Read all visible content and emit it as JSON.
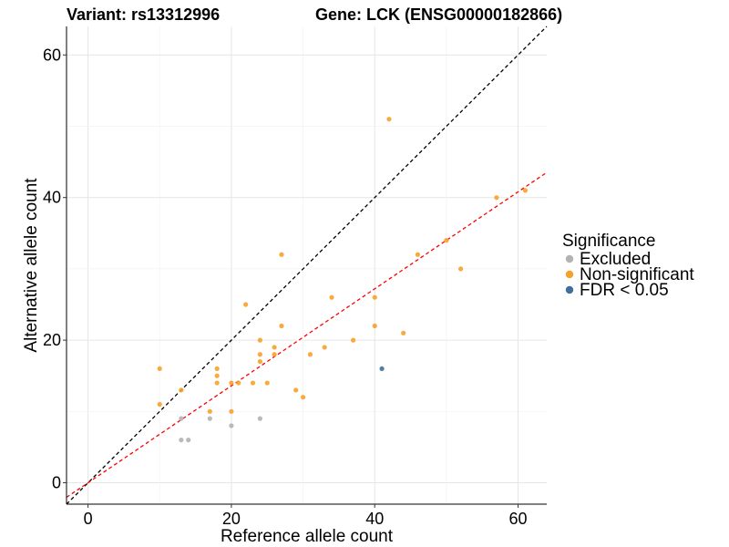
{
  "chart_data": {
    "type": "scatter",
    "title_left": "Variant: rs13312996",
    "title_right": "Gene: LCK (ENSG00000182866)",
    "xlabel": "Reference allele count",
    "ylabel": "Alternative allele count",
    "xlim": [
      -3,
      64
    ],
    "ylim": [
      -3,
      64
    ],
    "xticks": [
      0,
      20,
      40,
      60
    ],
    "yticks": [
      0,
      20,
      40,
      60
    ],
    "grid": true,
    "legend": {
      "title": "Significance",
      "placement": "right",
      "entries": [
        {
          "label": "Excluded",
          "color": "#b3b3b3"
        },
        {
          "label": "Non-significant",
          "color": "#f7a128"
        },
        {
          "label": "FDR < 0.05",
          "color": "#3f6f9e"
        }
      ]
    },
    "reference_lines": [
      {
        "kind": "identity",
        "slope": 1,
        "intercept": 0,
        "color": "#000000",
        "style": "dashed"
      },
      {
        "kind": "fit",
        "slope": 0.68,
        "intercept": 0,
        "color": "#ff0000",
        "style": "dashed"
      }
    ],
    "series": [
      {
        "name": "Excluded",
        "color": "#b3b3b3",
        "points": [
          [
            13,
            6
          ],
          [
            14,
            6
          ],
          [
            13,
            9
          ],
          [
            17,
            9
          ],
          [
            20,
            8
          ],
          [
            24,
            9
          ]
        ]
      },
      {
        "name": "Non-significant",
        "color": "#f7a128",
        "points": [
          [
            10,
            16
          ],
          [
            10,
            11
          ],
          [
            13,
            13
          ],
          [
            17,
            10
          ],
          [
            18,
            16
          ],
          [
            18,
            15
          ],
          [
            18,
            14
          ],
          [
            20,
            14
          ],
          [
            20,
            10
          ],
          [
            21,
            14
          ],
          [
            22,
            25
          ],
          [
            23,
            14
          ],
          [
            24,
            20
          ],
          [
            24,
            18
          ],
          [
            24,
            17
          ],
          [
            25,
            14
          ],
          [
            26,
            19
          ],
          [
            26,
            18
          ],
          [
            27,
            32
          ],
          [
            27,
            22
          ],
          [
            29,
            13
          ],
          [
            30,
            12
          ],
          [
            31,
            18
          ],
          [
            33,
            19
          ],
          [
            34,
            26
          ],
          [
            37,
            20
          ],
          [
            40,
            26
          ],
          [
            40,
            22
          ],
          [
            42,
            51
          ],
          [
            44,
            21
          ],
          [
            46,
            32
          ],
          [
            50,
            34
          ],
          [
            52,
            30
          ],
          [
            57,
            40
          ],
          [
            61,
            41
          ]
        ]
      },
      {
        "name": "FDR < 0.05",
        "color": "#3f6f9e",
        "points": [
          [
            41,
            16
          ]
        ]
      }
    ]
  }
}
